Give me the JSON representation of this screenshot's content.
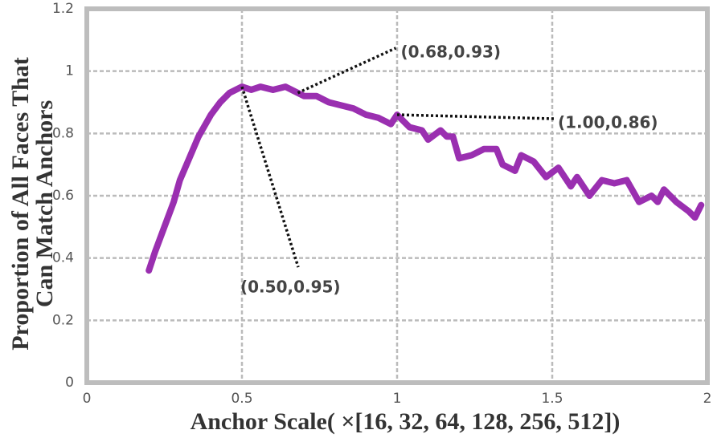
{
  "chart_data": {
    "type": "line",
    "xlabel": "Anchor Scale( ×[16, 32, 64, 128, 256, 512])",
    "ylabel": [
      "Proportion of All Faces That",
      "Can Match Anchors"
    ],
    "xlim": [
      0,
      2
    ],
    "xticks": [
      0,
      0.5,
      1,
      1.5,
      2
    ],
    "ylim": [
      0,
      1.2
    ],
    "yticks": [
      0,
      0.2,
      0.4,
      0.6,
      0.8,
      1,
      1.2
    ],
    "grid": true,
    "series": [
      {
        "color": "#9a2fb0",
        "x": [
          0.2,
          0.22,
          0.25,
          0.28,
          0.3,
          0.33,
          0.36,
          0.4,
          0.43,
          0.46,
          0.5,
          0.53,
          0.56,
          0.6,
          0.64,
          0.68,
          0.7,
          0.74,
          0.78,
          0.82,
          0.86,
          0.9,
          0.94,
          0.98,
          1.0,
          1.04,
          1.08,
          1.1,
          1.14,
          1.16,
          1.18,
          1.2,
          1.24,
          1.28,
          1.32,
          1.34,
          1.38,
          1.4,
          1.44,
          1.48,
          1.52,
          1.56,
          1.58,
          1.62,
          1.66,
          1.7,
          1.74,
          1.78,
          1.82,
          1.84,
          1.86,
          1.9,
          1.94,
          1.96,
          1.98
        ],
        "values": [
          0.36,
          0.42,
          0.5,
          0.58,
          0.65,
          0.72,
          0.79,
          0.86,
          0.9,
          0.93,
          0.95,
          0.94,
          0.95,
          0.94,
          0.95,
          0.93,
          0.92,
          0.92,
          0.9,
          0.89,
          0.88,
          0.86,
          0.85,
          0.83,
          0.86,
          0.82,
          0.81,
          0.78,
          0.81,
          0.79,
          0.79,
          0.72,
          0.73,
          0.75,
          0.75,
          0.7,
          0.68,
          0.73,
          0.71,
          0.66,
          0.69,
          0.63,
          0.66,
          0.6,
          0.65,
          0.64,
          0.65,
          0.58,
          0.6,
          0.58,
          0.62,
          0.58,
          0.55,
          0.53,
          0.57
        ]
      }
    ],
    "annotations": [
      {
        "text": "(0.50,0.95)",
        "x": 0.5,
        "y": 0.95
      },
      {
        "text": "(0.68,0.93)",
        "x": 0.68,
        "y": 0.93
      },
      {
        "text": "(1.00,0.86)",
        "x": 1.0,
        "y": 0.86
      }
    ]
  }
}
